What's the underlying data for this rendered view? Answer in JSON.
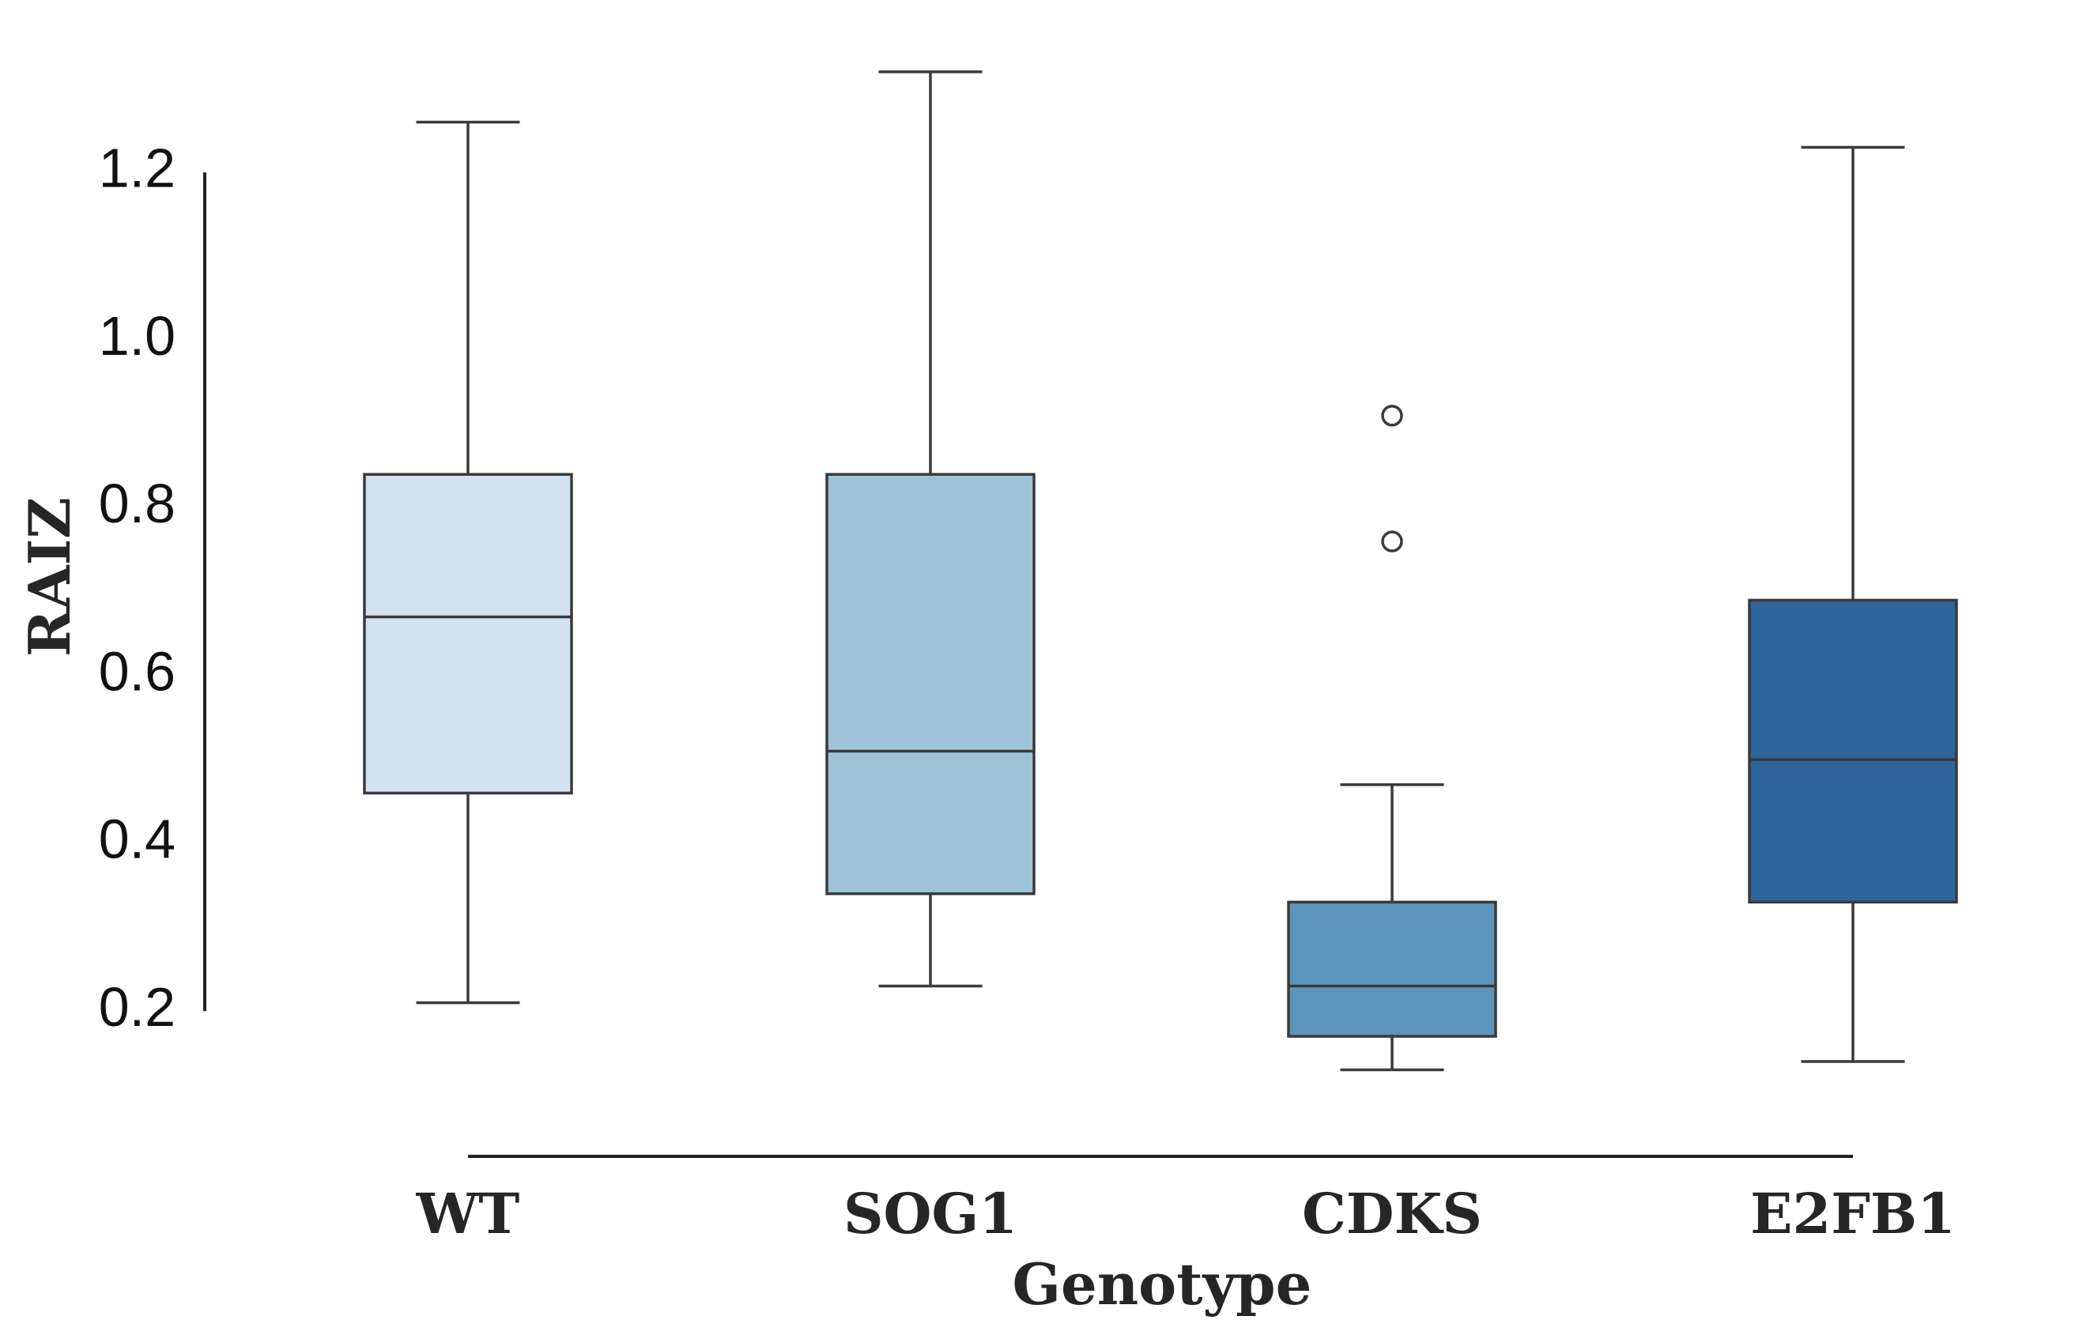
{
  "chart_data": {
    "type": "box",
    "x_label": "Genotype",
    "y_label": "RAIZ",
    "categories": [
      "WT",
      "SOG1",
      "CDKS",
      "E2FB1"
    ],
    "colors": [
      "#d4e2f0",
      "#9fc3d7",
      "#5b95bc",
      "#2d6499"
    ],
    "boxes": [
      {
        "min": 0.21,
        "q1": 0.46,
        "median": 0.67,
        "q3": 0.84,
        "max": 1.26
      },
      {
        "min": 0.23,
        "q1": 0.34,
        "median": 0.51,
        "q3": 0.84,
        "max": 1.32
      },
      {
        "min": 0.13,
        "q1": 0.17,
        "median": 0.23,
        "q3": 0.33,
        "max": 0.47,
        "outliers": [
          0.91,
          0.76
        ]
      },
      {
        "min": 0.14,
        "q1": 0.33,
        "median": 0.5,
        "q3": 0.69,
        "max": 1.23
      }
    ],
    "ylim": [
      0.09,
      1.35
    ],
    "yticks": [
      0.2,
      0.4,
      0.6,
      0.8,
      {
        "value": 1,
        "label": "1.0"
      },
      1.2
    ]
  }
}
